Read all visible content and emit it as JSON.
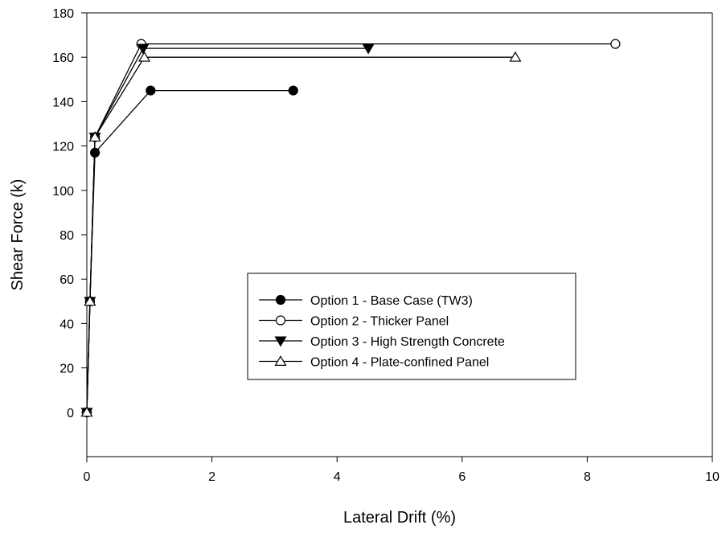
{
  "chart_data": {
    "type": "line",
    "xlabel": "Lateral Drift (%)",
    "ylabel": "Shear Force (k)",
    "xlim": [
      0,
      10
    ],
    "ylim": [
      -20,
      180
    ],
    "xticks": [
      0,
      2,
      4,
      6,
      8,
      10
    ],
    "yticks": [
      0,
      20,
      40,
      60,
      80,
      100,
      120,
      140,
      160,
      180
    ],
    "grid": false,
    "legend_position": "center-right",
    "series": [
      {
        "name": "Option 1 - Base Case (TW3)",
        "marker": "filled-circle",
        "x": [
          0,
          0.05,
          0.13,
          1.02,
          3.3
        ],
        "y": [
          0,
          50,
          117,
          145,
          145
        ]
      },
      {
        "name": "Option 2 - Thicker Panel",
        "marker": "open-circle",
        "x": [
          0,
          0.05,
          0.13,
          0.87,
          8.45
        ],
        "y": [
          0,
          50,
          124,
          166,
          166
        ]
      },
      {
        "name": "Option 3 - High Strength Concrete",
        "marker": "filled-triangle-down",
        "x": [
          0,
          0.05,
          0.13,
          0.9,
          4.5
        ],
        "y": [
          0,
          50,
          124,
          164,
          164
        ]
      },
      {
        "name": "Option 4 - Plate-confined Panel",
        "marker": "open-triangle-up",
        "x": [
          0,
          0.05,
          0.13,
          0.92,
          6.85
        ],
        "y": [
          0,
          50,
          124,
          160,
          160
        ]
      }
    ]
  }
}
